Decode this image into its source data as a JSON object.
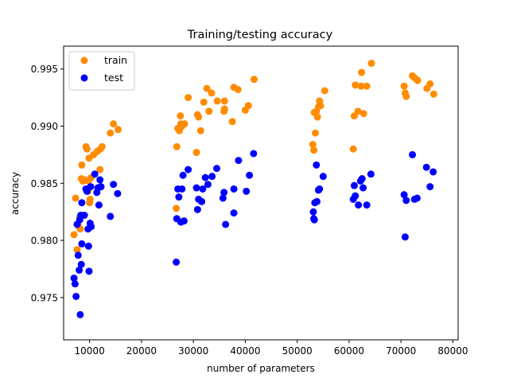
{
  "chart_data": {
    "type": "scatter",
    "title": "Training/testing accuracy",
    "xlabel": "number of parameters",
    "ylabel": "accuracy",
    "xlim": [
      5000,
      81000
    ],
    "ylim": [
      0.9713,
      0.997
    ],
    "xticks": [
      10000,
      20000,
      30000,
      40000,
      50000,
      60000,
      70000,
      80000
    ],
    "xtick_labels": [
      "10000",
      "20000",
      "30000",
      "40000",
      "50000",
      "60000",
      "70000",
      "80000"
    ],
    "yticks": [
      0.975,
      0.98,
      0.985,
      0.99,
      0.995
    ],
    "ytick_labels": [
      "0.975",
      "0.980",
      "0.985",
      "0.990",
      "0.995"
    ],
    "grid": false,
    "legend_position": "top-left",
    "series": [
      {
        "name": "train",
        "color": "#ff8c00",
        "points": [
          [
            7000,
            0.9805
          ],
          [
            7300,
            0.9837
          ],
          [
            7600,
            0.9792
          ],
          [
            7800,
            0.9813
          ],
          [
            8100,
            0.982
          ],
          [
            8200,
            0.981
          ],
          [
            8400,
            0.9854
          ],
          [
            8500,
            0.9866
          ],
          [
            8700,
            0.9852
          ],
          [
            9100,
            0.9853
          ],
          [
            9300,
            0.9882
          ],
          [
            9500,
            0.988
          ],
          [
            9700,
            0.9843
          ],
          [
            9800,
            0.9852
          ],
          [
            9900,
            0.9872
          ],
          [
            10000,
            0.9833
          ],
          [
            10100,
            0.9836
          ],
          [
            10300,
            0.9855
          ],
          [
            10800,
            0.9875
          ],
          [
            11500,
            0.9878
          ],
          [
            12000,
            0.9862
          ],
          [
            12100,
            0.988
          ],
          [
            12400,
            0.9882
          ],
          [
            14000,
            0.9894
          ],
          [
            14600,
            0.9902
          ],
          [
            15500,
            0.9897
          ],
          [
            26700,
            0.9828
          ],
          [
            26800,
            0.9882
          ],
          [
            27000,
            0.9898
          ],
          [
            27300,
            0.9896
          ],
          [
            27500,
            0.9909
          ],
          [
            27600,
            0.9902
          ],
          [
            27800,
            0.99
          ],
          [
            28300,
            0.9902
          ],
          [
            29000,
            0.9925
          ],
          [
            30600,
            0.9877
          ],
          [
            30800,
            0.991
          ],
          [
            31000,
            0.9908
          ],
          [
            31400,
            0.9896
          ],
          [
            32000,
            0.9921
          ],
          [
            32600,
            0.9933
          ],
          [
            33000,
            0.9913
          ],
          [
            33500,
            0.9929
          ],
          [
            34600,
            0.9922
          ],
          [
            35900,
            0.9913
          ],
          [
            36000,
            0.9915
          ],
          [
            36000,
            0.9922
          ],
          [
            37500,
            0.9904
          ],
          [
            37800,
            0.9934
          ],
          [
            38600,
            0.9932
          ],
          [
            40000,
            0.9914
          ],
          [
            40600,
            0.9918
          ],
          [
            41700,
            0.9941
          ],
          [
            53000,
            0.9884
          ],
          [
            53200,
            0.9879
          ],
          [
            53300,
            0.9912
          ],
          [
            53500,
            0.9894
          ],
          [
            53700,
            0.9913
          ],
          [
            53900,
            0.9908
          ],
          [
            54100,
            0.9917
          ],
          [
            54300,
            0.9922
          ],
          [
            54500,
            0.9918
          ],
          [
            55300,
            0.9931
          ],
          [
            60800,
            0.988
          ],
          [
            61000,
            0.9909
          ],
          [
            61200,
            0.9936
          ],
          [
            61700,
            0.9913
          ],
          [
            62300,
            0.9935
          ],
          [
            62400,
            0.9947
          ],
          [
            62800,
            0.9911
          ],
          [
            63400,
            0.9935
          ],
          [
            64300,
            0.9955
          ],
          [
            70600,
            0.9935
          ],
          [
            70800,
            0.9929
          ],
          [
            71000,
            0.9926
          ],
          [
            72200,
            0.9944
          ],
          [
            72700,
            0.9942
          ],
          [
            73200,
            0.994
          ],
          [
            75000,
            0.9933
          ],
          [
            75600,
            0.9937
          ],
          [
            76300,
            0.9928
          ]
        ]
      },
      {
        "name": "test",
        "color": "#0000ff",
        "points": [
          [
            7000,
            0.9767
          ],
          [
            7200,
            0.9762
          ],
          [
            7400,
            0.9751
          ],
          [
            7600,
            0.9814
          ],
          [
            7800,
            0.9787
          ],
          [
            8000,
            0.9774
          ],
          [
            8100,
            0.9818
          ],
          [
            8200,
            0.9735
          ],
          [
            8300,
            0.9822
          ],
          [
            8400,
            0.9779
          ],
          [
            8500,
            0.9833
          ],
          [
            8500,
            0.9797
          ],
          [
            9000,
            0.9822
          ],
          [
            9300,
            0.9845
          ],
          [
            9500,
            0.9843
          ],
          [
            9700,
            0.981
          ],
          [
            9800,
            0.9795
          ],
          [
            9900,
            0.9773
          ],
          [
            10100,
            0.9815
          ],
          [
            10200,
            0.9847
          ],
          [
            10300,
            0.9812
          ],
          [
            11000,
            0.9858
          ],
          [
            11400,
            0.9842
          ],
          [
            11600,
            0.9846
          ],
          [
            11800,
            0.9831
          ],
          [
            12000,
            0.9853
          ],
          [
            12200,
            0.9847
          ],
          [
            14000,
            0.9821
          ],
          [
            14600,
            0.9849
          ],
          [
            15400,
            0.9841
          ],
          [
            26700,
            0.9781
          ],
          [
            26800,
            0.9819
          ],
          [
            27000,
            0.9845
          ],
          [
            27200,
            0.9838
          ],
          [
            27600,
            0.9816
          ],
          [
            27800,
            0.9845
          ],
          [
            28000,
            0.9857
          ],
          [
            28200,
            0.9817
          ],
          [
            29000,
            0.9862
          ],
          [
            30600,
            0.9846
          ],
          [
            30800,
            0.9827
          ],
          [
            31000,
            0.9836
          ],
          [
            31600,
            0.9834
          ],
          [
            31800,
            0.9845
          ],
          [
            32300,
            0.9855
          ],
          [
            32800,
            0.9849
          ],
          [
            33600,
            0.9856
          ],
          [
            34500,
            0.9863
          ],
          [
            35700,
            0.9837
          ],
          [
            35900,
            0.9842
          ],
          [
            36200,
            0.9814
          ],
          [
            37800,
            0.9824
          ],
          [
            37800,
            0.9845
          ],
          [
            38700,
            0.987
          ],
          [
            40200,
            0.9843
          ],
          [
            40800,
            0.9857
          ],
          [
            41600,
            0.9876
          ],
          [
            53100,
            0.9825
          ],
          [
            53200,
            0.9819
          ],
          [
            53300,
            0.9818
          ],
          [
            53400,
            0.9833
          ],
          [
            53700,
            0.9866
          ],
          [
            53800,
            0.9834
          ],
          [
            54100,
            0.9844
          ],
          [
            54300,
            0.9845
          ],
          [
            55000,
            0.9856
          ],
          [
            60800,
            0.9836
          ],
          [
            61000,
            0.9848
          ],
          [
            61200,
            0.9839
          ],
          [
            61800,
            0.9831
          ],
          [
            62200,
            0.9852
          ],
          [
            62500,
            0.9854
          ],
          [
            62700,
            0.9846
          ],
          [
            63400,
            0.9831
          ],
          [
            64200,
            0.9858
          ],
          [
            70600,
            0.984
          ],
          [
            70800,
            0.9803
          ],
          [
            71000,
            0.9835
          ],
          [
            72200,
            0.9875
          ],
          [
            72600,
            0.9836
          ],
          [
            73100,
            0.9837
          ],
          [
            74900,
            0.9864
          ],
          [
            75600,
            0.9847
          ],
          [
            76200,
            0.986
          ]
        ]
      }
    ]
  }
}
